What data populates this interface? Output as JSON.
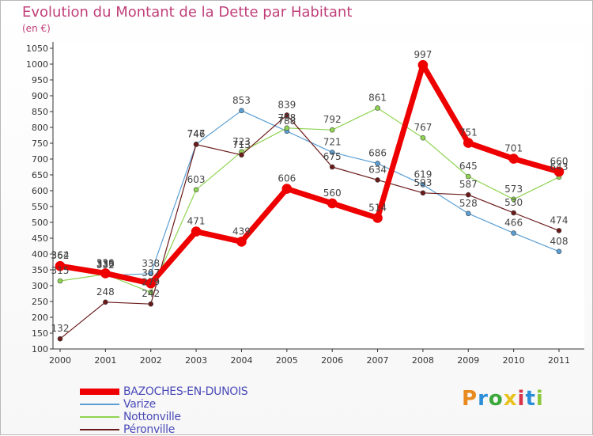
{
  "title": "Evolution du Montant de la Dette par Habitant",
  "subtitle": "(en €)",
  "logo": {
    "text": [
      "P",
      "r",
      "o",
      "x",
      "i",
      "t",
      "i"
    ],
    "colors": [
      "#e88a1e",
      "#2d8ed8",
      "#3aa83a",
      "#e8c21e",
      "#d8344a",
      "#2d8ed8",
      "#8ac83a"
    ]
  },
  "chart_data": {
    "type": "line",
    "title": "Evolution du Montant de la Dette par Habitant",
    "subtitle": "(en €)",
    "x": [
      "2000",
      "2001",
      "2002",
      "2003",
      "2004",
      "2005",
      "2006",
      "2007",
      "2008",
      "2009",
      "2010",
      "2011"
    ],
    "ylim": [
      100,
      1050
    ],
    "yticks": [
      100,
      150,
      200,
      250,
      300,
      350,
      400,
      450,
      500,
      550,
      600,
      650,
      700,
      750,
      800,
      850,
      900,
      950,
      1000,
      1050
    ],
    "grid": false,
    "legend_position": "bottom-left",
    "series": [
      {
        "name": "BAZOCHES-EN-DUNOIS",
        "color": "#ee0000",
        "width": 7,
        "marker": 6,
        "values": [
          362,
          339,
          307,
          471,
          439,
          606,
          560,
          514,
          997,
          751,
          701,
          660
        ]
      },
      {
        "name": "Varize",
        "color": "#5b9fd4",
        "width": 1.2,
        "marker": 3,
        "values": [
          364,
          332,
          338,
          747,
          853,
          788,
          721,
          686,
          619,
          528,
          466,
          408
        ]
      },
      {
        "name": "Nottonville",
        "color": "#8fd452",
        "width": 1.2,
        "marker": 3,
        "values": [
          315,
          336,
          279,
          603,
          723,
          798,
          792,
          861,
          767,
          645,
          573,
          643
        ]
      },
      {
        "name": "Péronville",
        "color": "#6b1a1a",
        "width": 1.2,
        "marker": 3,
        "values": [
          132,
          248,
          242,
          746,
          713,
          839,
          675,
          634,
          593,
          587,
          530,
          474
        ]
      }
    ]
  }
}
